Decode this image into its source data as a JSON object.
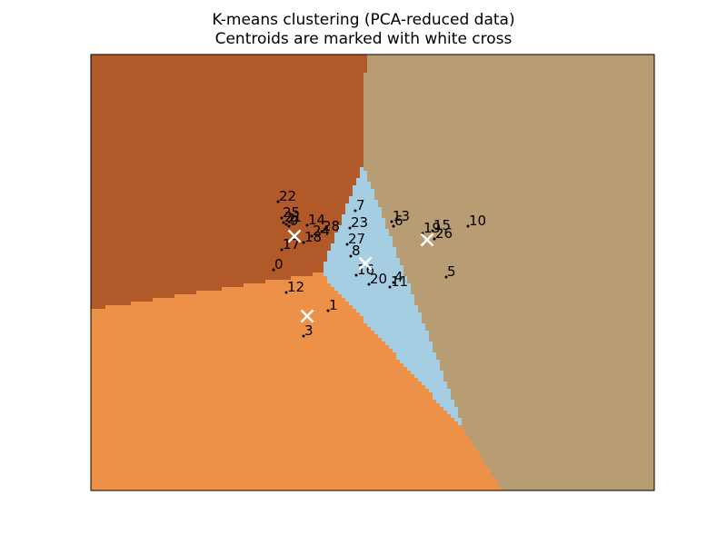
{
  "chart_data": {
    "type": "scatter",
    "title": "K-means clustering (PCA-reduced data)",
    "subtitle": "Centroids are marked with white cross",
    "xlabel": "",
    "ylabel": "",
    "xlim": [
      0,
      620
    ],
    "ylim": [
      0,
      480
    ],
    "axis_ticks_shown": false,
    "grid": false,
    "legend": "none",
    "region_colors": {
      "brown": "#b15928",
      "tan": "#b89c74",
      "light_blue": "#a6cee3",
      "orange": "#ec9147"
    },
    "centroid_color": "#ffffff",
    "point_color": "#000000",
    "centroids": [
      {
        "x": 224,
        "y": 280
      },
      {
        "x": 370,
        "y": 276
      },
      {
        "x": 302,
        "y": 250
      },
      {
        "x": 238,
        "y": 192
      }
    ],
    "points": [
      {
        "label": "0",
        "x": 201,
        "y": 243
      },
      {
        "label": "1",
        "x": 261,
        "y": 198
      },
      {
        "label": "2",
        "x": 215,
        "y": 293
      },
      {
        "label": "3",
        "x": 234,
        "y": 170
      },
      {
        "label": "4",
        "x": 333,
        "y": 229
      },
      {
        "label": "5",
        "x": 391,
        "y": 235
      },
      {
        "label": "6",
        "x": 333,
        "y": 291
      },
      {
        "label": "7",
        "x": 291,
        "y": 308
      },
      {
        "label": "8",
        "x": 286,
        "y": 258
      },
      {
        "label": "9",
        "x": 218,
        "y": 291
      },
      {
        "label": "10",
        "x": 415,
        "y": 291
      },
      {
        "label": "11",
        "x": 329,
        "y": 224
      },
      {
        "label": "12",
        "x": 215,
        "y": 218
      },
      {
        "label": "13",
        "x": 331,
        "y": 296
      },
      {
        "label": "14",
        "x": 238,
        "y": 292
      },
      {
        "label": "15",
        "x": 376,
        "y": 286
      },
      {
        "label": "16",
        "x": 292,
        "y": 237
      },
      {
        "label": "17",
        "x": 210,
        "y": 265
      },
      {
        "label": "18",
        "x": 234,
        "y": 273
      },
      {
        "label": "19",
        "x": 365,
        "y": 283
      },
      {
        "label": "20",
        "x": 306,
        "y": 227
      },
      {
        "label": "21",
        "x": 212,
        "y": 295
      },
      {
        "label": "22",
        "x": 206,
        "y": 318
      },
      {
        "label": "23",
        "x": 285,
        "y": 289
      },
      {
        "label": "24",
        "x": 243,
        "y": 280
      },
      {
        "label": "25",
        "x": 210,
        "y": 300
      },
      {
        "label": "26",
        "x": 378,
        "y": 277
      },
      {
        "label": "27",
        "x": 282,
        "y": 271
      },
      {
        "label": "28",
        "x": 254,
        "y": 285
      }
    ]
  }
}
